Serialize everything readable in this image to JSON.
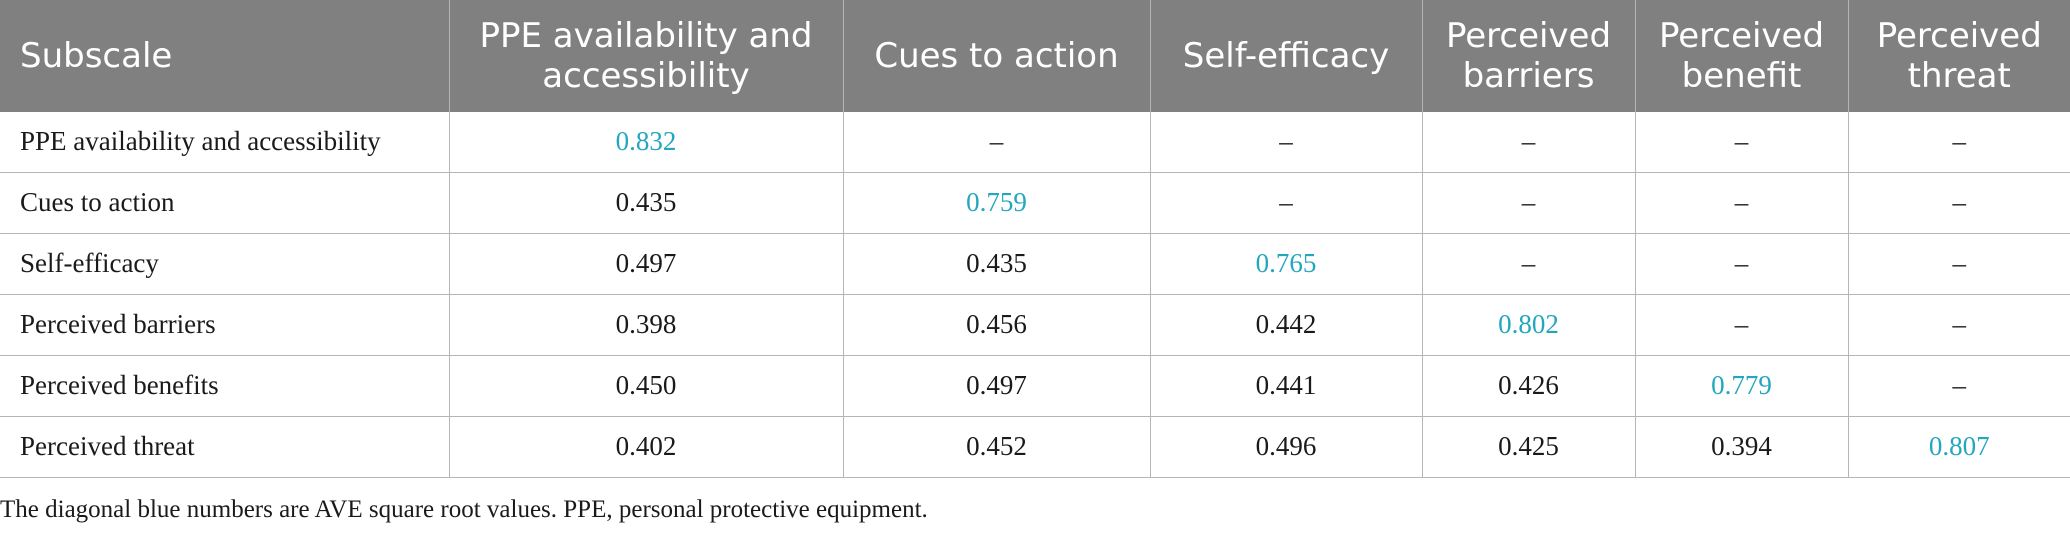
{
  "table": {
    "headers": [
      "Subscale",
      "PPE availability and accessibility",
      "Cues to action",
      "Self-efficacy",
      "Perceived barriers",
      "Perceived benefit",
      "Perceived threat"
    ],
    "rows": [
      {
        "label": "PPE availability and accessibility",
        "cells": [
          "0.832",
          "–",
          "–",
          "–",
          "–",
          "–"
        ]
      },
      {
        "label": "Cues to action",
        "cells": [
          "0.435",
          "0.759",
          "–",
          "–",
          "–",
          "–"
        ]
      },
      {
        "label": "Self-efficacy",
        "cells": [
          "0.497",
          "0.435",
          "0.765",
          "–",
          "–",
          "–"
        ]
      },
      {
        "label": "Perceived barriers",
        "cells": [
          "0.398",
          "0.456",
          "0.442",
          "0.802",
          "–",
          "–"
        ]
      },
      {
        "label": "Perceived benefits",
        "cells": [
          "0.450",
          "0.497",
          "0.441",
          "0.426",
          "0.779",
          "–"
        ]
      },
      {
        "label": "Perceived threat",
        "cells": [
          "0.402",
          "0.452",
          "0.496",
          "0.425",
          "0.394",
          "0.807"
        ]
      }
    ]
  },
  "colors": {
    "header_bg": "#7f807f",
    "diagonal_value": "#23a7bf"
  },
  "footnote": "The diagonal blue numbers are AVE square root values. PPE, personal protective equipment."
}
